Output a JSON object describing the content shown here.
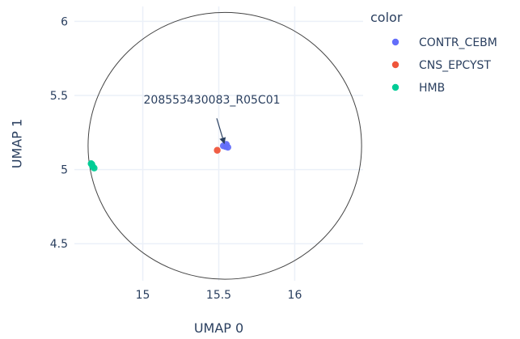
{
  "chart_data": {
    "type": "scatter",
    "xlabel": "UMAP 0",
    "ylabel": "UMAP 1",
    "xlim": [
      14.55,
      16.45
    ],
    "ylim": [
      4.25,
      6.1
    ],
    "x_ticks": [
      15,
      15.5,
      16
    ],
    "x_tick_labels": [
      "15",
      "15.5",
      "16"
    ],
    "y_ticks": [
      4.5,
      5,
      5.5,
      6
    ],
    "y_tick_labels": [
      "4.5",
      "5",
      "5.5",
      "6"
    ],
    "grid": true,
    "legend": {
      "title": "color",
      "placement": "top-right-outside"
    },
    "series": [
      {
        "name": "CONTR_CEBM",
        "color": "#636efa",
        "points": [
          [
            15.53,
            5.16
          ],
          [
            15.56,
            5.15
          ],
          [
            15.55,
            5.17
          ],
          [
            15.545,
            5.155
          ]
        ]
      },
      {
        "name": "CNS_EPCYST",
        "color": "#ef553b",
        "points": [
          [
            15.49,
            5.13
          ]
        ]
      },
      {
        "name": "HMB",
        "color": "#00cc96",
        "points": [
          [
            14.66,
            5.04
          ],
          [
            14.68,
            5.01
          ],
          [
            14.67,
            5.02
          ],
          [
            14.665,
            5.035
          ]
        ]
      }
    ],
    "annotation": {
      "text": "208553430083_R05C01",
      "point": [
        15.54,
        5.16
      ]
    },
    "circle": {
      "center": [
        15.54,
        5.16
      ],
      "radius": 0.9
    }
  }
}
